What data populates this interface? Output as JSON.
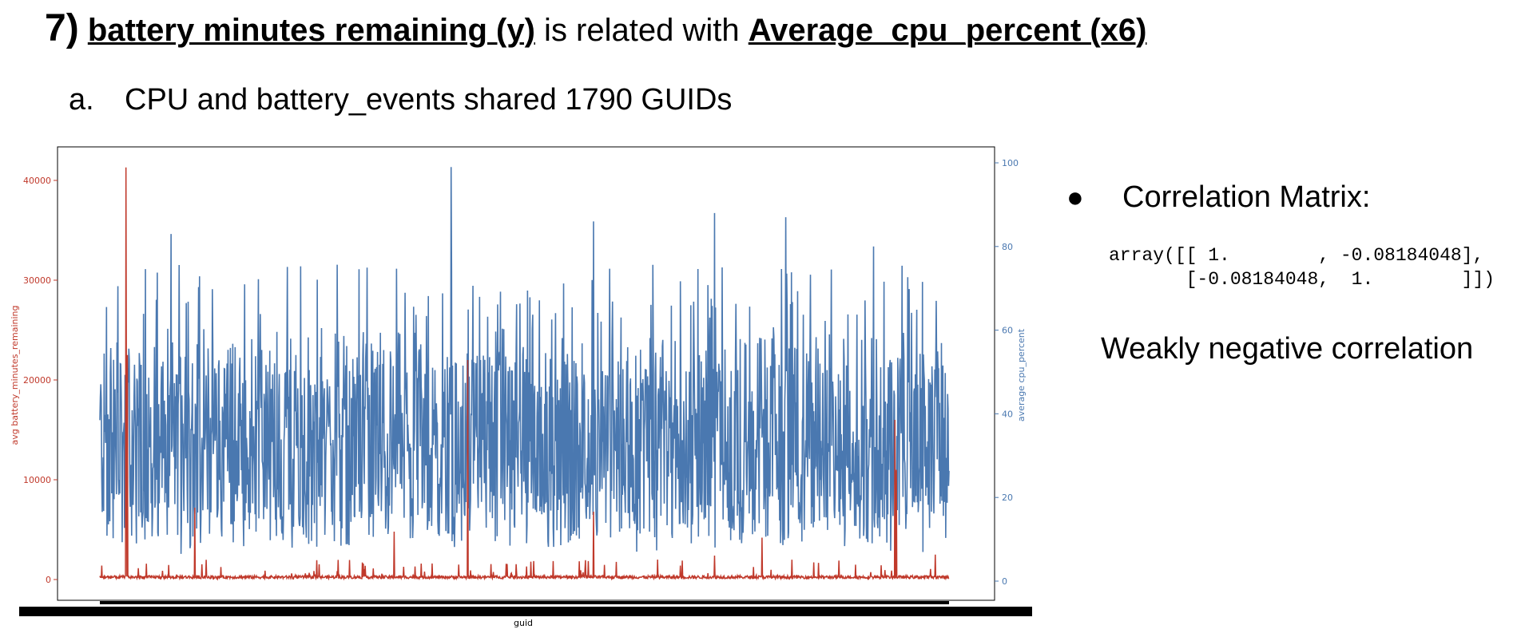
{
  "slide": {
    "number": "7)",
    "y_var": "battery minutes remaining (y)",
    "related_text": " is related with ",
    "x_var": "Average_cpu_percent (x6)",
    "sub_label": "a.",
    "sub_text": "CPU and battery_events shared 1790 GUIDs",
    "bullet_symbol": "●",
    "bullet_text": "Correlation Matrix:",
    "matrix_line1": "array([[ 1.        , -0.08184048],",
    "matrix_line2": "       [-0.08184048,  1.        ]])",
    "conclusion": "Weakly negative correlation"
  },
  "chart_data": {
    "type": "line",
    "xlabel": "guid",
    "n_points": 1790,
    "grid": false,
    "left_axis": {
      "label": "avg battery_minutes_remaining",
      "ylim": [
        0,
        42000
      ],
      "ticks": [
        0,
        10000,
        20000,
        30000,
        40000
      ],
      "color": "#c0392b"
    },
    "right_axis": {
      "label": "average cpu_percent",
      "ylim": [
        0,
        100
      ],
      "ticks": [
        0,
        20,
        40,
        60,
        80,
        100
      ],
      "color": "#4a78b0"
    },
    "series": [
      {
        "name": "avg battery_minutes_remaining",
        "axis": "left",
        "color": "#c0392b",
        "baseline": 300,
        "spikes": [
          {
            "index": 55,
            "value": 41300
          },
          {
            "index": 56,
            "value": 18000
          },
          {
            "index": 58,
            "value": 22500
          },
          {
            "index": 200,
            "value": 7200
          },
          {
            "index": 620,
            "value": 4800
          },
          {
            "index": 775,
            "value": 22000
          },
          {
            "index": 1040,
            "value": 6800
          },
          {
            "index": 1175,
            "value": 2000
          },
          {
            "index": 1295,
            "value": 2400
          },
          {
            "index": 1395,
            "value": 4200
          },
          {
            "index": 1675,
            "value": 16000
          },
          {
            "index": 1678,
            "value": 11000
          },
          {
            "index": 1760,
            "value": 2500
          }
        ]
      },
      {
        "name": "average cpu_percent",
        "axis": "right",
        "color": "#4a78b0",
        "mean": 34,
        "spikes": [
          {
            "index": 740,
            "value": 99
          },
          {
            "index": 1295,
            "value": 88
          },
          {
            "index": 1445,
            "value": 87
          },
          {
            "index": 1040,
            "value": 86
          },
          {
            "index": 1630,
            "value": 80
          },
          {
            "index": 150,
            "value": 83
          }
        ]
      }
    ]
  }
}
